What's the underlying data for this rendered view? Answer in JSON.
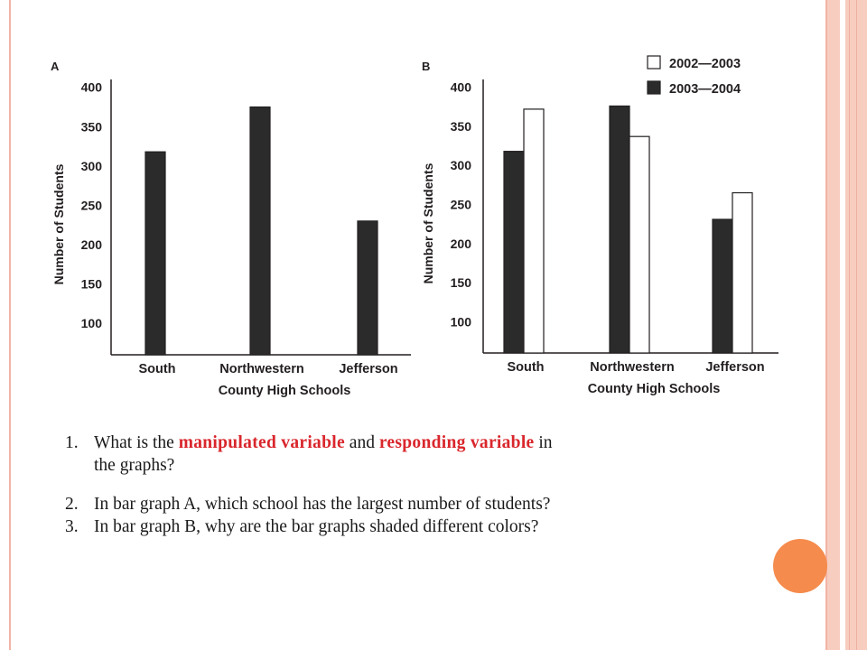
{
  "chart_data": [
    {
      "panel_label": "A",
      "type": "bar",
      "categories": [
        "South",
        "Northwestern",
        "Jefferson"
      ],
      "series": [
        {
          "values": [
            318,
            375,
            230
          ],
          "color": "#2b2b2b"
        }
      ],
      "ylabel": "Number of Students",
      "xlabel": "County High Schools",
      "yticks": [
        100,
        150,
        200,
        250,
        300,
        350,
        400
      ],
      "ylim": [
        60,
        410
      ],
      "grid": false
    },
    {
      "panel_label": "B",
      "type": "bar",
      "categories": [
        "South",
        "Northwestern",
        "Jefferson"
      ],
      "series": [
        {
          "name": "2003—2004",
          "values": [
            318,
            376,
            231
          ],
          "color": "#2b2b2b"
        },
        {
          "name": "2002—2003",
          "values": [
            372,
            337,
            265
          ],
          "color": "#ffffff"
        }
      ],
      "legend_order": [
        "2002—2003",
        "2003—2004"
      ],
      "ylabel": "Number of Students",
      "xlabel": "County High Schools",
      "yticks": [
        100,
        150,
        200,
        250,
        300,
        350,
        400
      ],
      "ylim": [
        60,
        410
      ],
      "legend_position": "top-right",
      "grid": false
    }
  ],
  "questions": [
    {
      "number": "1.",
      "line1_before": "What is the ",
      "highlight1": "manipulated variable",
      "middle": " and ",
      "highlight2": "responding variable",
      "line1_after": " in",
      "line2": "the graphs?"
    },
    {
      "number": "2.",
      "text": "In bar graph A, which school has the largest number of students?"
    },
    {
      "number": "3.",
      "text": "In bar graph B, why are the bar graphs shaded different colors?"
    }
  ],
  "colors": {
    "bar_dark": "#2b2b2b",
    "highlight_red": "#d9262c",
    "accent_orange": "#f58b4c",
    "frame_pink": "#f2b4a6"
  }
}
